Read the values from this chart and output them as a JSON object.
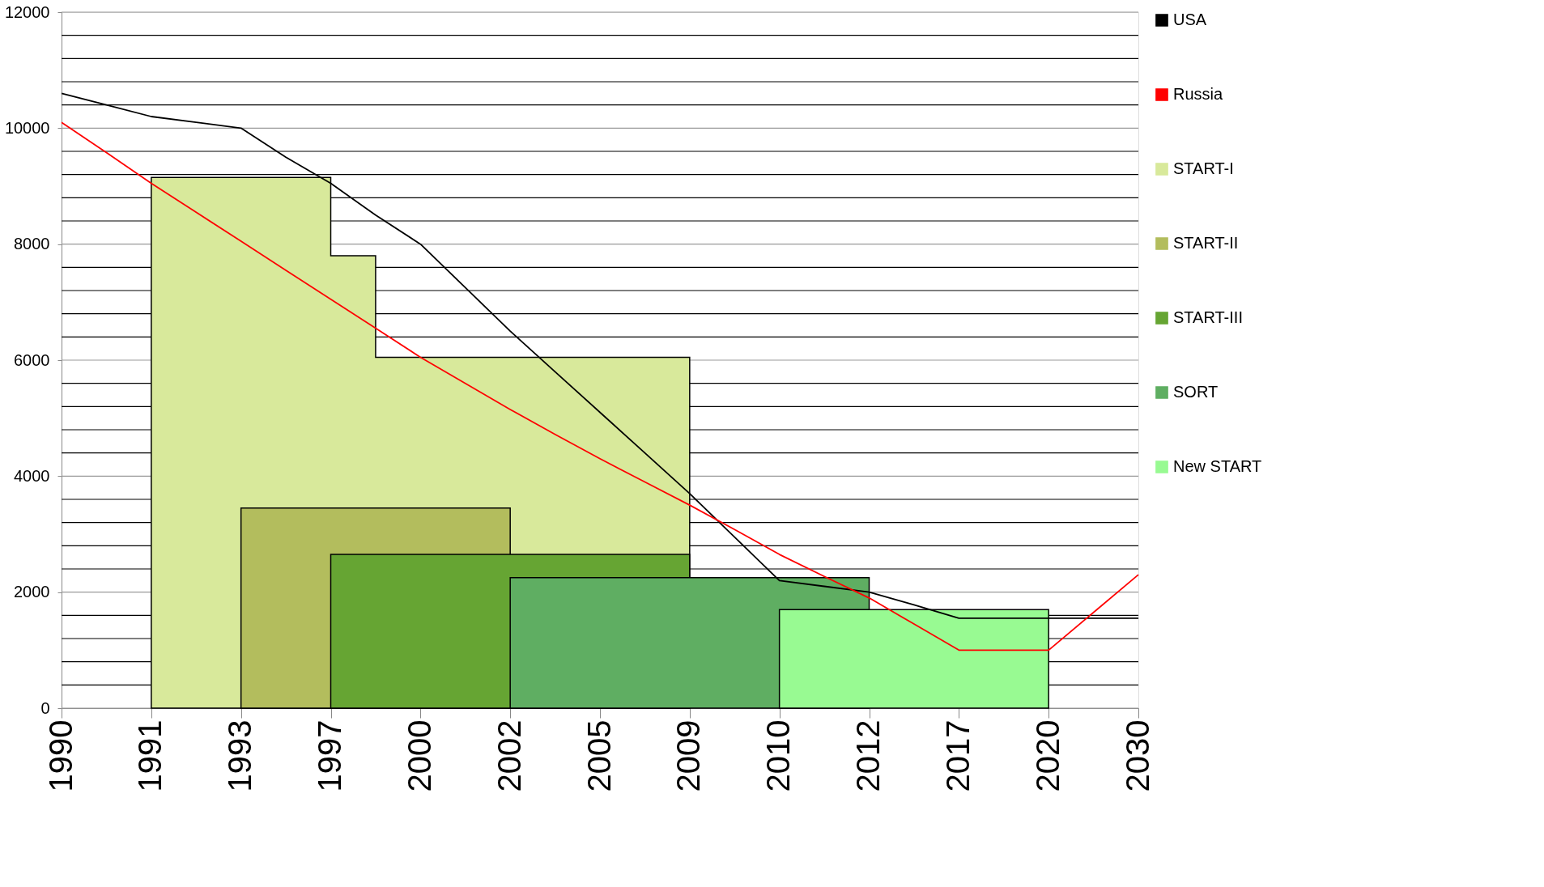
{
  "chart_data": {
    "type": "area",
    "categories": [
      "1990",
      null,
      "1991",
      null,
      "1993",
      null,
      "1997",
      null,
      "2000",
      null,
      "2002",
      null,
      "2005",
      null,
      "2009",
      null,
      "2010",
      null,
      "2012",
      null,
      "2017",
      null,
      "2020",
      null,
      "2030"
    ],
    "series": [
      {
        "name": "USA",
        "type": "line",
        "color": "#000000",
        "values": [
          10600,
          10400,
          10200,
          10100,
          10000,
          9500,
          9050,
          8500,
          8000,
          7250,
          6500,
          5800,
          5100,
          4400,
          3700,
          2950,
          2200,
          2100,
          2000,
          1780,
          1550,
          1550,
          1550,
          1550,
          1550
        ]
      },
      {
        "name": "Russia",
        "type": "line",
        "color": "#ff0000",
        "values": [
          10100,
          9580,
          9050,
          8550,
          8050,
          7550,
          7050,
          6550,
          6050,
          5600,
          5150,
          4720,
          4300,
          3900,
          3500,
          3080,
          2650,
          2270,
          1900,
          1450,
          1000,
          1000,
          1000,
          1650,
          2300
        ]
      },
      {
        "name": "START-I",
        "color": "#d8e99b",
        "values": [
          null,
          null,
          9150,
          9150,
          9150,
          9150,
          7800,
          6050,
          6050,
          6050,
          6050,
          6050,
          6050,
          6050,
          6050,
          null,
          null,
          null,
          null,
          null,
          null,
          null,
          null,
          null,
          null
        ]
      },
      {
        "name": "START-II",
        "color": "#b3bd5d",
        "values": [
          null,
          null,
          null,
          null,
          3450,
          3450,
          3450,
          3450,
          3450,
          3450,
          3450,
          null,
          null,
          null,
          null,
          null,
          null,
          null,
          null,
          null,
          null,
          null,
          null,
          null,
          null
        ]
      },
      {
        "name": "START-III",
        "color": "#66a533",
        "values": [
          null,
          null,
          null,
          null,
          null,
          null,
          2650,
          2650,
          2650,
          2650,
          2650,
          2650,
          2650,
          2650,
          2650,
          null,
          null,
          null,
          null,
          null,
          null,
          null,
          null,
          null,
          null
        ]
      },
      {
        "name": "SORT",
        "color": "#5fae62",
        "values": [
          null,
          null,
          null,
          null,
          null,
          null,
          null,
          null,
          null,
          null,
          2250,
          2250,
          2250,
          2250,
          2250,
          2250,
          2250,
          2250,
          2250,
          null,
          null,
          null,
          null,
          null,
          null
        ]
      },
      {
        "name": "New START",
        "color": "#98fa92",
        "values": [
          null,
          null,
          null,
          null,
          null,
          null,
          null,
          null,
          null,
          null,
          null,
          null,
          null,
          null,
          null,
          null,
          1700,
          1700,
          1700,
          1700,
          1700,
          1700,
          1700,
          null,
          null
        ]
      }
    ],
    "ylim": [
      0,
      12000
    ],
    "yticks": [
      0,
      {
        "value": 400,
        "label": null
      },
      {
        "value": 800,
        "label": null
      },
      {
        "value": 1200,
        "label": null
      },
      {
        "value": 1600,
        "label": null
      },
      2000,
      {
        "value": 2400,
        "label": null
      },
      {
        "value": 2800,
        "label": null
      },
      {
        "value": 3200,
        "label": null
      },
      {
        "value": 3600,
        "label": null
      },
      4000,
      {
        "value": 4400,
        "label": null
      },
      {
        "value": 4800,
        "label": null
      },
      {
        "value": 5200,
        "label": null
      },
      {
        "value": 5600,
        "label": null
      },
      6000,
      {
        "value": 6400,
        "label": null
      },
      {
        "value": 6800,
        "label": null
      },
      {
        "value": 7200,
        "label": null
      },
      {
        "value": 7600,
        "label": null
      },
      8000,
      {
        "value": 8400,
        "label": null
      },
      {
        "value": 8800,
        "label": null
      },
      {
        "value": 9200,
        "label": null
      },
      {
        "value": 9600,
        "label": null
      },
      10000,
      {
        "value": 10400,
        "label": null
      },
      {
        "value": 10800,
        "label": null
      },
      {
        "value": 11200,
        "label": null
      },
      {
        "value": 11600,
        "label": null
      },
      12000
    ],
    "grid": "y",
    "legend": "right"
  }
}
